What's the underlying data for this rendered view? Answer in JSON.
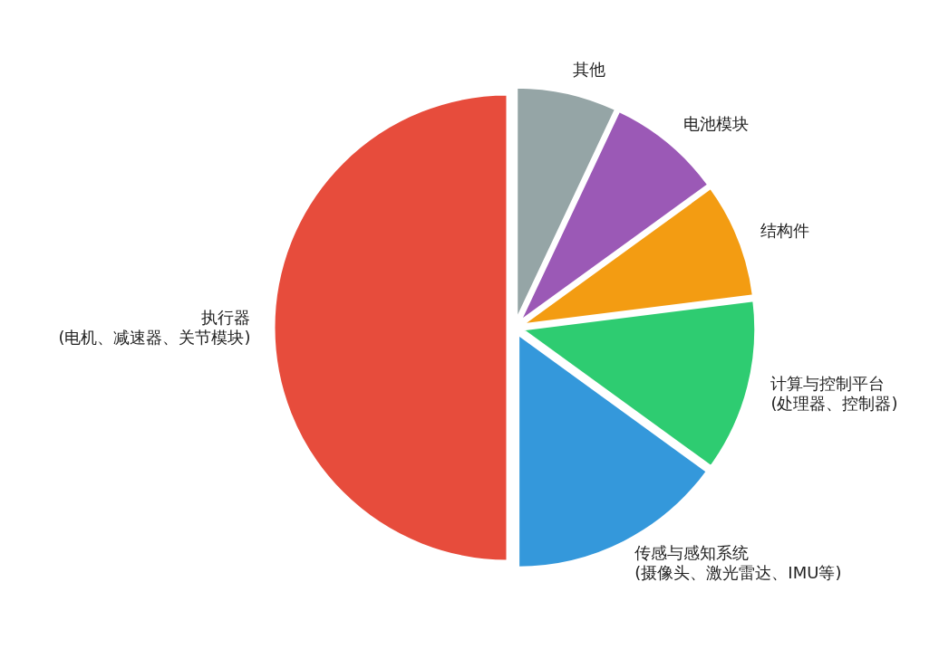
{
  "chart_data": {
    "type": "pie",
    "categories": [
      "其他",
      "电池模块",
      "结构件",
      "计算与控制平台\n(处理器、控制器)",
      "传感与感知系统\n(摄像头、激光雷达、IMU等)",
      "执行器\n(电机、减速器、关节模块)"
    ],
    "values": [
      7,
      8,
      8,
      12,
      15,
      50
    ],
    "colors": [
      "#95a5a6",
      "#9b59b6",
      "#f39c12",
      "#2ecc71",
      "#3498db",
      "#e74c3c"
    ]
  }
}
